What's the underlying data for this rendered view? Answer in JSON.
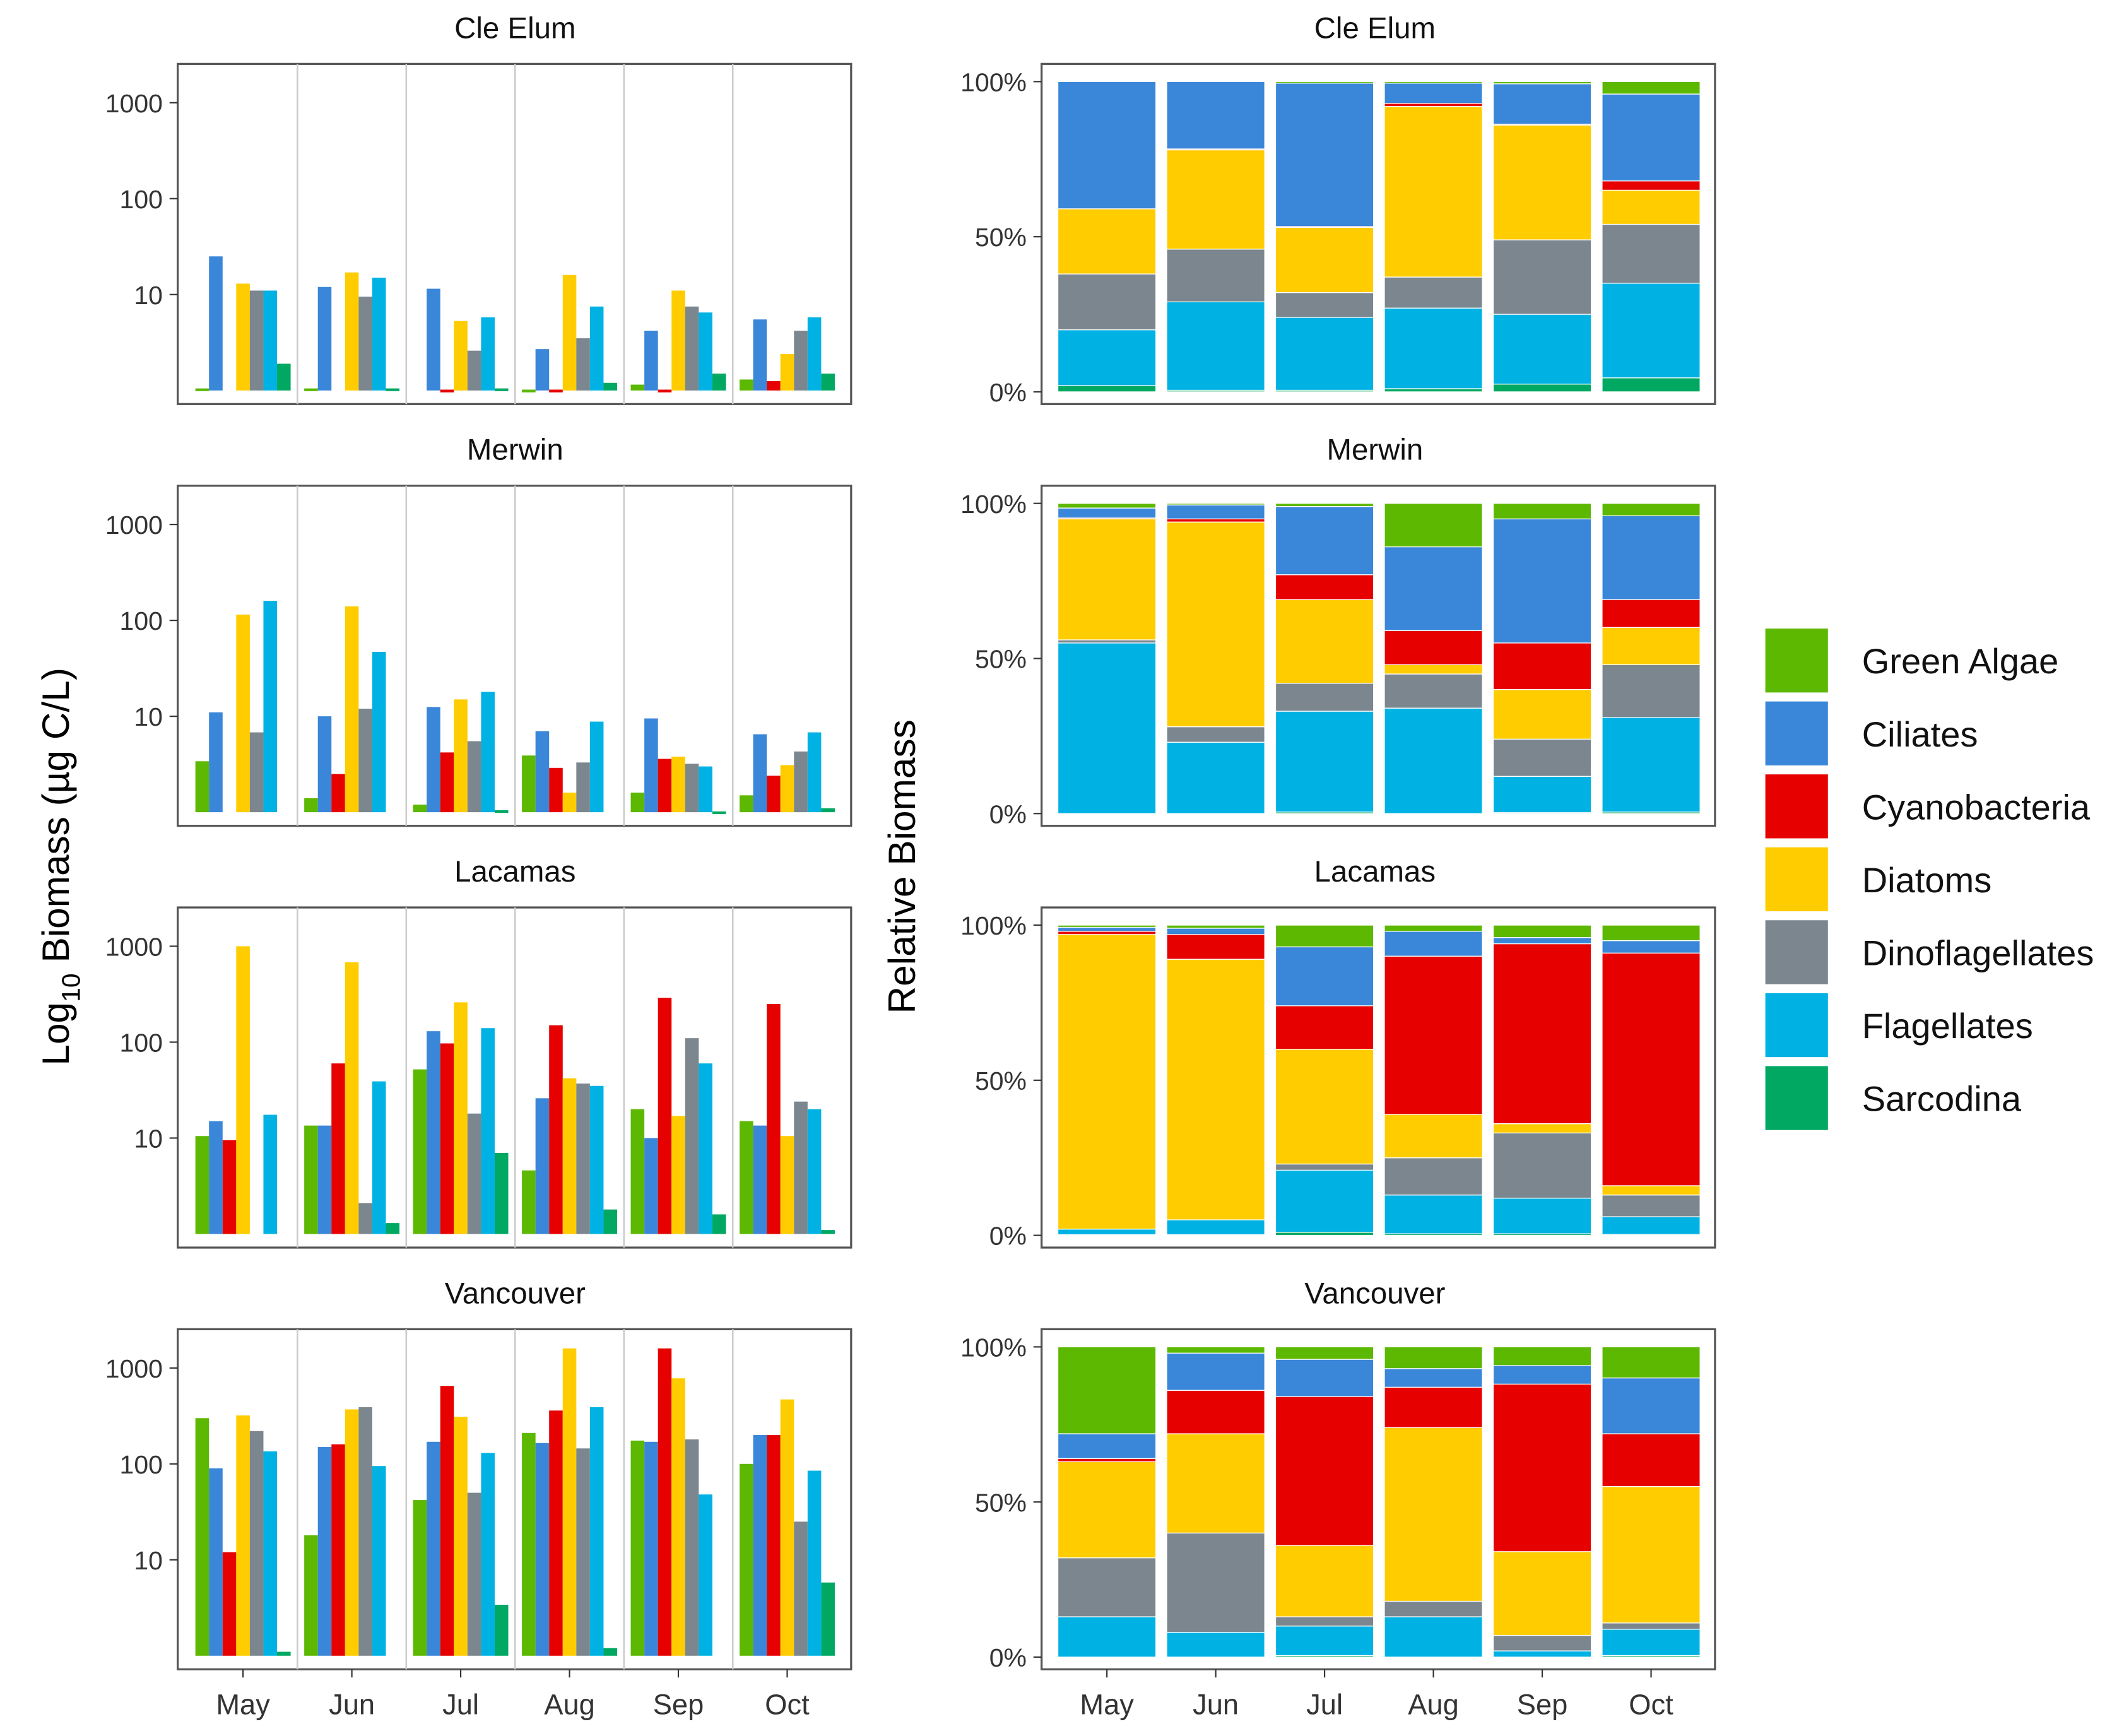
{
  "chart_data": {
    "type": "bar",
    "months": [
      "May",
      "Jun",
      "Jul",
      "Aug",
      "Sep",
      "Oct"
    ],
    "groups": [
      "Green Algae",
      "Ciliates",
      "Cyanobacteria",
      "Diatoms",
      "Dinoflagellates",
      "Flagellates",
      "Sarcodina"
    ],
    "colors": [
      "#5cb800",
      "#3a86d9",
      "#e60000",
      "#ffcc00",
      "#7b868e",
      "#00b2e3",
      "#00a862"
    ],
    "left_ylabel_main": "Log",
    "left_ylabel_sub": "10",
    "left_ylabel_rest": " Biomass (µg C/L)",
    "right_ylabel": "Relative Biomass",
    "left_yticks": [
      "1000",
      "100",
      "10"
    ],
    "left_ytick_values": [
      1000,
      100,
      10
    ],
    "right_yticks": [
      "100%",
      "50%",
      "0%"
    ],
    "right_ytick_values": [
      100,
      50,
      0
    ],
    "left_scale": "log10",
    "right_scale": "percent",
    "lakes": [
      {
        "name": "Cle Elum",
        "biomass": [
          [
            1.05,
            25,
            0,
            13,
            11,
            11,
            1.9
          ],
          [
            1.05,
            12,
            0,
            17,
            9.5,
            15,
            1.05
          ],
          [
            0,
            11.5,
            1.02,
            5.3,
            2.6,
            5.8,
            1.05
          ],
          [
            1.02,
            2.7,
            1.02,
            16,
            3.5,
            7.5,
            1.2
          ],
          [
            1.15,
            4.2,
            1.02,
            11,
            7.5,
            6.5,
            1.5
          ],
          [
            1.3,
            5.5,
            1.25,
            2.4,
            4.2,
            5.8,
            1.5
          ]
        ],
        "relative": [
          [
            0,
            41,
            0,
            21,
            18,
            18,
            2
          ],
          [
            0,
            21.7,
            0.3,
            32,
            17,
            28.5,
            0.5
          ],
          [
            0.5,
            46.2,
            0.3,
            21,
            8,
            23.5,
            0.5
          ],
          [
            0.5,
            6.5,
            1,
            55,
            10,
            26,
            1
          ],
          [
            0.7,
            13,
            0.3,
            37,
            24,
            22.5,
            2.5
          ],
          [
            4,
            28,
            3,
            11,
            19,
            30.5,
            4.5
          ]
        ]
      },
      {
        "name": "Merwin",
        "biomass": [
          [
            3.4,
            11,
            0,
            115,
            6.8,
            160,
            0
          ],
          [
            1.4,
            10,
            2.5,
            140,
            12,
            47,
            0
          ],
          [
            1.2,
            12.5,
            4.2,
            15,
            5.5,
            18,
            1.05
          ],
          [
            3.9,
            7,
            2.9,
            1.6,
            3.3,
            8.8,
            0
          ],
          [
            1.6,
            9.5,
            3.6,
            3.8,
            3.2,
            3,
            1.02
          ],
          [
            1.5,
            6.5,
            2.4,
            3.1,
            4.3,
            6.8,
            1.1
          ]
        ],
        "relative": [
          [
            1.5,
            3.2,
            0.3,
            39,
            1,
            55,
            0
          ],
          [
            0.5,
            4.5,
            1,
            66,
            5,
            23,
            0
          ],
          [
            1,
            22,
            8,
            27,
            9,
            32.5,
            0.5
          ],
          [
            14,
            27,
            11,
            3,
            11,
            34,
            0
          ],
          [
            5,
            40,
            15,
            16,
            12,
            11.7,
            0.3
          ],
          [
            4,
            27,
            9,
            12,
            17,
            30.5,
            0.5
          ]
        ]
      },
      {
        "name": "Lacamas",
        "biomass": [
          [
            10.5,
            15,
            9.5,
            1000,
            0,
            17.5,
            0
          ],
          [
            13.5,
            13.5,
            60,
            680,
            2.1,
            39,
            1.3
          ],
          [
            52,
            130,
            97,
            260,
            18,
            140,
            7
          ],
          [
            4.6,
            26,
            150,
            42,
            37,
            35,
            1.8
          ],
          [
            20,
            10,
            290,
            17,
            110,
            60,
            1.6
          ],
          [
            15,
            13.5,
            250,
            10.5,
            24,
            20,
            1.1
          ]
        ],
        "relative": [
          [
            0.7,
            1.3,
            1,
            95,
            0,
            1.8,
            0.2
          ],
          [
            1,
            2,
            8,
            84,
            0,
            4.8,
            0.2
          ],
          [
            7,
            19,
            14,
            37,
            2,
            20,
            1
          ],
          [
            2,
            8,
            51,
            14,
            12,
            12.5,
            0.5
          ],
          [
            4,
            2,
            58,
            3,
            21,
            11.5,
            0.5
          ],
          [
            5,
            4,
            75,
            3,
            7,
            5.7,
            0.3
          ]
        ]
      },
      {
        "name": "Vancouver",
        "biomass": [
          [
            300,
            90,
            12,
            320,
            220,
            135,
            1.1
          ],
          [
            18,
            150,
            160,
            370,
            390,
            95,
            0
          ],
          [
            42,
            170,
            650,
            310,
            50,
            130,
            3.4
          ],
          [
            210,
            165,
            360,
            1600,
            145,
            390,
            1.2
          ],
          [
            175,
            170,
            1600,
            780,
            180,
            48,
            0
          ],
          [
            100,
            200,
            200,
            470,
            25,
            85,
            5.8
          ]
        ],
        "relative": [
          [
            28,
            8,
            1,
            31,
            19,
            13,
            0
          ],
          [
            2,
            12,
            14,
            32,
            32,
            8,
            0
          ],
          [
            4,
            12,
            48,
            23,
            3,
            9.5,
            0.5
          ],
          [
            7,
            6,
            13,
            56,
            5,
            13,
            0
          ],
          [
            6,
            6,
            54,
            27,
            5,
            2,
            0
          ],
          [
            10,
            18,
            17,
            44,
            2,
            8.5,
            0.5
          ]
        ]
      }
    ]
  }
}
